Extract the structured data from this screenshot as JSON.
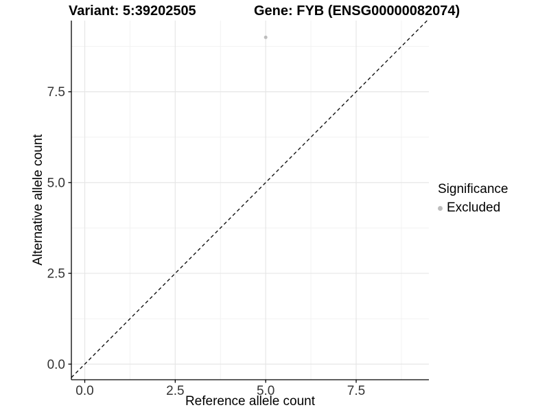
{
  "colors": {
    "background": "#ffffff",
    "grid_major": "#e6e6e6",
    "grid_minor": "#f2f2f2",
    "axis_line": "#000000",
    "tick_text": "#333333",
    "title_text": "#000000",
    "point_gray": "#bdbdbd",
    "dashed_line": "#111111"
  },
  "chart_data": {
    "type": "scatter",
    "title_left": "Variant: 5:39202505",
    "title_right": "Gene: FYB (ENSG00000082074)",
    "xlabel": "Reference allele count",
    "ylabel": "Alternative allele count",
    "xlim": [
      -0.37,
      9.51
    ],
    "ylim": [
      -0.43,
      9.46
    ],
    "x_ticks": {
      "values": [
        0,
        2.5,
        5,
        7.5
      ],
      "labels": [
        "0.0",
        "2.5",
        "5.0",
        "7.5"
      ]
    },
    "y_ticks": {
      "values": [
        0,
        2.5,
        5,
        7.5
      ],
      "labels": [
        "0.0",
        "2.5",
        "5.0",
        "7.5"
      ]
    },
    "x_minor": [
      1.25,
      3.75,
      6.25,
      8.75
    ],
    "y_minor": [
      1.25,
      3.75,
      6.25,
      8.75
    ],
    "grid": "major+minor",
    "legend_position": "right",
    "points": [
      {
        "x": 5,
        "y": 9,
        "series": "Excluded",
        "color": "#bdbdbd"
      }
    ],
    "reference_line": {
      "kind": "identity y=x",
      "style": "dashed",
      "color": "#111111"
    },
    "legend": {
      "title": "Significance",
      "entries": [
        {
          "label": "Excluded",
          "marker": "circle",
          "color": "#bdbdbd"
        }
      ]
    }
  }
}
